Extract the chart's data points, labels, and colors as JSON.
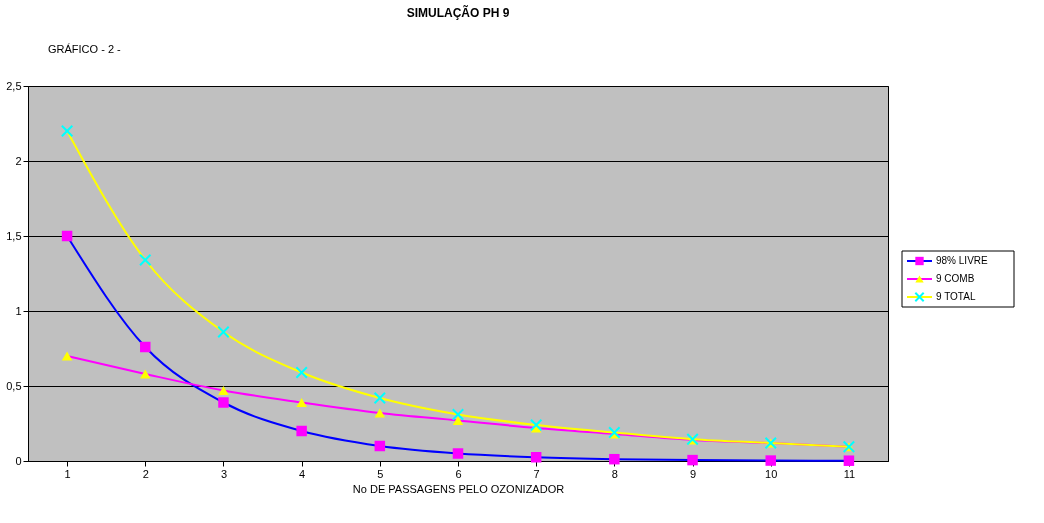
{
  "chart_data": {
    "type": "line",
    "title": "SIMULAÇÃO PH 9",
    "xlabel": "No DE PASSAGENS PELO OZONIZADOR",
    "annotations": [
      "GRÁFICO  - 2 -"
    ],
    "categories": [
      "1",
      "2",
      "3",
      "4",
      "5",
      "6",
      "7",
      "8",
      "9",
      "10",
      "11"
    ],
    "series": [
      {
        "name": "98% LIVRE",
        "color": "#0000ff",
        "marker": "square",
        "colors": [
          "#ff00ff",
          "#ff00ff",
          "#ff00ff",
          "#ff00ff",
          "#ff00ff",
          "#ff00ff",
          "#ff00ff",
          "#ff00ff",
          "#ff00ff",
          "#ff00ff",
          "#ff00ff"
        ],
        "values": [
          1.5,
          0.76,
          0.39,
          0.2,
          0.1,
          0.05,
          0.025,
          0.012,
          0.006,
          0.003,
          0.002
        ]
      },
      {
        "name": "9 COMB",
        "color": "#ff00ff",
        "marker": "triangle",
        "colors": [
          "#ffff00",
          "#ffff00",
          "#ffff00",
          "#ffff00",
          "#ffff00",
          "#ffff00",
          "#ffff00",
          "#ffff00",
          "#ffff00",
          "#ffff00",
          "#ffff00"
        ],
        "values": [
          0.7,
          0.58,
          0.47,
          0.39,
          0.32,
          0.27,
          0.22,
          0.18,
          0.14,
          0.12,
          0.095
        ]
      },
      {
        "name": "9 TOTAL",
        "color": "#ffff00",
        "marker": "cross",
        "colors": [
          "#00ffff",
          "#00ffff",
          "#00ffff",
          "#00ffff",
          "#00ffff",
          "#00ffff",
          "#00ffff",
          "#00ffff",
          "#00ffff",
          "#00ffff",
          "#00ffff"
        ],
        "values": [
          2.2,
          1.34,
          0.86,
          0.59,
          0.42,
          0.31,
          0.24,
          0.19,
          0.145,
          0.12,
          0.095
        ]
      }
    ],
    "ylim": [
      0,
      2.5
    ],
    "yticks": [
      0,
      {
        "value": 0.5,
        "label": "0,5"
      },
      1,
      {
        "value": 1.5,
        "label": "1,5"
      },
      2,
      {
        "value": 2.5,
        "label": "2,5"
      }
    ],
    "grid": "y",
    "legend": "right"
  }
}
